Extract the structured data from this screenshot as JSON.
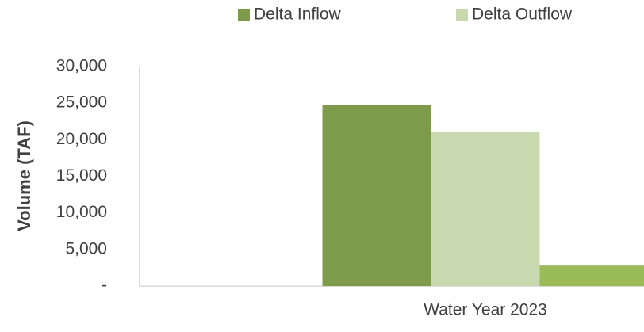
{
  "chart_data": {
    "type": "bar",
    "y_label": "Volume (TAF)",
    "categories": [
      "Water Year 2023"
    ],
    "series": [
      {
        "name": "Delta Inflow",
        "color": "#7d9b4a",
        "values": [
          24700
        ]
      },
      {
        "name": "Delta Outflow",
        "color": "#c8d8af",
        "values": [
          21100
        ]
      },
      {
        "color": "#9bbb59",
        "values": [
          2800
        ]
      }
    ],
    "ylim": [
      0,
      30000
    ],
    "yticks": [
      {
        "value": 0,
        "label": "-"
      },
      {
        "value": 5000,
        "label": "5,000"
      },
      {
        "value": 10000,
        "label": "10,000"
      },
      {
        "value": 15000,
        "label": "15,000"
      },
      {
        "value": 20000,
        "label": "20,000"
      },
      {
        "value": 25000,
        "label": "25,000"
      },
      {
        "value": 30000,
        "label": "30,000"
      }
    ],
    "grid": false,
    "legend": "top"
  }
}
